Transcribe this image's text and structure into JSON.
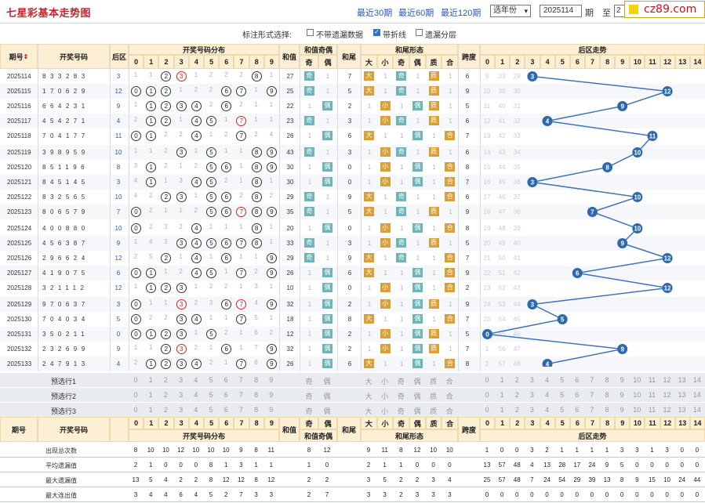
{
  "page": {
    "title": "七星彩基本走势图",
    "range_links": [
      "最近30期",
      "最近60期",
      "最近120期"
    ],
    "year_select": "选年份",
    "issue_from": "2025114",
    "label_qi": "期",
    "label_zhi": "至",
    "issue_to": "2",
    "brand": "cz89.com"
  },
  "filter": {
    "label": "标注形式选择:",
    "options": [
      {
        "label": "不带遗漏数据",
        "checked": false
      },
      {
        "label": "带折线",
        "checked": true
      },
      {
        "label": "遗漏分层",
        "checked": false
      }
    ]
  },
  "header": {
    "issue": "期号",
    "draw": "开奖号码",
    "back": "后区",
    "dist": "开奖号码分布",
    "sum": "和值",
    "sum_parity": "和值奇偶",
    "odd": "奇",
    "even": "偶",
    "tail": "和尾",
    "sum_form": "和尾形态",
    "forms": [
      "大",
      "小",
      "奇",
      "偶",
      "质",
      "合"
    ],
    "span": "跨度",
    "back_trend": "后区走势",
    "digits": [
      "0",
      "1",
      "2",
      "3",
      "4",
      "5",
      "6",
      "7",
      "8",
      "9"
    ],
    "back_digits": [
      "0",
      "1",
      "2",
      "3",
      "4",
      "5",
      "6",
      "7",
      "8",
      "9",
      "10",
      "11",
      "12",
      "13",
      "14"
    ]
  },
  "rows": [
    {
      "issue": "2025114",
      "draw": "833283",
      "back": "3",
      "dist": [
        "1",
        "1",
        "②",
        "③",
        "1",
        "2",
        "2",
        "2",
        "⑧",
        "1"
      ],
      "sum": "27",
      "parity": "奇",
      "tail": "7",
      "size": "大",
      "pr": "质",
      "span": "6",
      "bmiss": [
        "9",
        "33",
        "29",
        "3",
        "",
        "",
        "",
        "",
        "",
        "",
        "",
        "",
        "",
        "",
        ""
      ]
    },
    {
      "issue": "2025115",
      "draw": "170629",
      "back": "12",
      "dist": [
        "⓪",
        "①",
        "②",
        "1",
        "2",
        "2",
        "⑥",
        "⑦",
        "1",
        "⑨"
      ],
      "sum": "25",
      "parity": "奇",
      "tail": "5",
      "size": "大",
      "pr": "质",
      "span": "9",
      "bmiss": [
        "10",
        "38",
        "30",
        "",
        "",
        "",
        "",
        "",
        "",
        "",
        "",
        "",
        "12",
        "",
        ""
      ]
    },
    {
      "issue": "2025116",
      "draw": "664231",
      "back": "9",
      "dist": [
        "1",
        "①",
        "②",
        "③",
        "④",
        "2",
        "⑥",
        "2",
        "1",
        "1"
      ],
      "sum": "22",
      "parity": "偶",
      "tail": "2",
      "size": "小",
      "pr": "质",
      "span": "5",
      "bmiss": [
        "11",
        "40",
        "31",
        "",
        "",
        "",
        "",
        "",
        "",
        "9",
        "",
        "",
        "",
        "",
        ""
      ]
    },
    {
      "issue": "2025117",
      "draw": "454271",
      "back": "4",
      "dist": [
        "2",
        "①",
        "②",
        "1",
        "④",
        "⑤",
        "1",
        "⑦",
        "1",
        "1"
      ],
      "sum": "23",
      "parity": "奇",
      "tail": "3",
      "size": "小",
      "pr": "质",
      "span": "6",
      "bmiss": [
        "12",
        "41",
        "32",
        "",
        "4",
        "",
        "",
        "",
        "",
        "",
        "",
        "",
        "",
        "",
        ""
      ]
    },
    {
      "issue": "2025118",
      "draw": "704177",
      "back": "11",
      "dist": [
        "⓪",
        "①",
        "2",
        "2",
        "④",
        "1",
        "2",
        "⑦",
        "2",
        "4"
      ],
      "sum": "26",
      "parity": "偶",
      "tail": "6",
      "size": "大",
      "pr": "合",
      "span": "7",
      "bmiss": [
        "13",
        "42",
        "33",
        "",
        "",
        "",
        "",
        "",
        "",
        "",
        "",
        "11",
        "",
        "",
        ""
      ]
    },
    {
      "issue": "2025119",
      "draw": "398959",
      "back": "10",
      "dist": [
        "1",
        "1",
        "2",
        "③",
        "1",
        "⑤",
        "1",
        "1",
        "⑧",
        "⑨"
      ],
      "sum": "43",
      "parity": "奇",
      "tail": "3",
      "size": "小",
      "pr": "质",
      "span": "6",
      "bmiss": [
        "14",
        "43",
        "34",
        "",
        "",
        "",
        "",
        "",
        "",
        "",
        "10",
        "",
        "",
        "",
        ""
      ]
    },
    {
      "issue": "2025120",
      "draw": "851196",
      "back": "8",
      "dist": [
        "3",
        "①",
        "2",
        "1",
        "2",
        "⑤",
        "⑥",
        "1",
        "⑧",
        "⑨"
      ],
      "sum": "30",
      "parity": "偶",
      "tail": "0",
      "size": "小",
      "pr": "合",
      "span": "8",
      "bmiss": [
        "15",
        "44",
        "35",
        "",
        "",
        "",
        "",
        "",
        "8",
        "",
        "",
        "",
        "",
        "",
        ""
      ]
    },
    {
      "issue": "2025121",
      "draw": "845145",
      "back": "3",
      "dist": [
        "4",
        "①",
        "1",
        "3",
        "④",
        "⑤",
        "2",
        "1",
        "⑧",
        "1"
      ],
      "sum": "30",
      "parity": "偶",
      "tail": "0",
      "size": "小",
      "pr": "合",
      "span": "7",
      "bmiss": [
        "16",
        "45",
        "36",
        "3",
        "",
        "",
        "",
        "",
        "",
        "",
        "",
        "",
        "",
        "",
        ""
      ]
    },
    {
      "issue": "2025122",
      "draw": "832565",
      "back": "10",
      "dist": [
        "4",
        "2",
        "②",
        "③",
        "1",
        "⑤",
        "⑥",
        "2",
        "⑧",
        "2"
      ],
      "sum": "29",
      "parity": "奇",
      "tail": "9",
      "size": "大",
      "pr": "合",
      "span": "6",
      "bmiss": [
        "17",
        "46",
        "37",
        "",
        "",
        "",
        "",
        "",
        "",
        "",
        "10",
        "",
        "",
        "",
        ""
      ]
    },
    {
      "issue": "2025123",
      "draw": "806579",
      "back": "7",
      "dist": [
        "⓪",
        "2",
        "1",
        "1",
        "2",
        "⑤",
        "⑥",
        "⑦",
        "⑧",
        "⑨"
      ],
      "sum": "35",
      "parity": "奇",
      "tail": "5",
      "size": "大",
      "pr": "质",
      "span": "9",
      "bmiss": [
        "18",
        "47",
        "38",
        "",
        "",
        "",
        "",
        "7",
        "",
        "",
        "",
        "",
        "",
        "",
        ""
      ]
    },
    {
      "issue": "2025124",
      "draw": "400880",
      "back": "10",
      "dist": [
        "⓪",
        "2",
        "3",
        "2",
        "④",
        "1",
        "1",
        "1",
        "⑧",
        "1"
      ],
      "sum": "20",
      "parity": "偶",
      "tail": "0",
      "size": "小",
      "pr": "合",
      "span": "8",
      "bmiss": [
        "19",
        "48",
        "39",
        "",
        "",
        "",
        "",
        "",
        "",
        "",
        "10",
        "",
        "",
        "",
        ""
      ]
    },
    {
      "issue": "2025125",
      "draw": "456387",
      "back": "9",
      "dist": [
        "1",
        "4",
        "3",
        "③",
        "④",
        "⑤",
        "⑥",
        "⑦",
        "⑧",
        "1"
      ],
      "sum": "33",
      "parity": "奇",
      "tail": "3",
      "size": "小",
      "pr": "质",
      "span": "5",
      "bmiss": [
        "20",
        "49",
        "40",
        "",
        "",
        "",
        "",
        "",
        "",
        "9",
        "",
        "",
        "",
        "",
        ""
      ]
    },
    {
      "issue": "2025126",
      "draw": "296624",
      "back": "12",
      "dist": [
        "2",
        "5",
        "②",
        "1",
        "④",
        "1",
        "⑥",
        "1",
        "1",
        "⑨"
      ],
      "sum": "29",
      "parity": "奇",
      "tail": "9",
      "size": "大",
      "pr": "合",
      "span": "7",
      "bmiss": [
        "21",
        "50",
        "41",
        "",
        "",
        "",
        "",
        "",
        "",
        "",
        "",
        "",
        "12",
        "",
        ""
      ]
    },
    {
      "issue": "2025127",
      "draw": "419075",
      "back": "6",
      "dist": [
        "⓪",
        "①",
        "1",
        "2",
        "④",
        "⑤",
        "1",
        "⑦",
        "2",
        "⑨"
      ],
      "sum": "26",
      "parity": "偶",
      "tail": "6",
      "size": "大",
      "pr": "合",
      "span": "9",
      "bmiss": [
        "22",
        "51",
        "42",
        "",
        "",
        "",
        "6",
        "",
        "",
        "",
        "",
        "",
        "",
        "",
        ""
      ]
    },
    {
      "issue": "2025128",
      "draw": "321112",
      "back": "12",
      "dist": [
        "1",
        "①",
        "②",
        "③",
        "1",
        "2",
        "2",
        "1",
        "3",
        "1"
      ],
      "sum": "10",
      "parity": "偶",
      "tail": "0",
      "size": "小",
      "pr": "合",
      "span": "2",
      "bmiss": [
        "23",
        "52",
        "43",
        "",
        "",
        "",
        "",
        "",
        "",
        "",
        "",
        "",
        "12",
        "",
        ""
      ]
    },
    {
      "issue": "2025129",
      "draw": "970637",
      "back": "3",
      "dist": [
        "⓪",
        "1",
        "1",
        "③",
        "2",
        "3",
        "⑥",
        "⑦",
        "4",
        "⑨"
      ],
      "sum": "32",
      "parity": "偶",
      "tail": "2",
      "size": "小",
      "pr": "质",
      "span": "9",
      "bmiss": [
        "24",
        "53",
        "44",
        "3",
        "",
        "",
        "",
        "",
        "",
        "",
        "",
        "",
        "",
        "",
        ""
      ]
    },
    {
      "issue": "2025130",
      "draw": "704034",
      "back": "5",
      "dist": [
        "⓪",
        "2",
        "2",
        "③",
        "④",
        "1",
        "1",
        "⑦",
        "5",
        "1"
      ],
      "sum": "18",
      "parity": "偶",
      "tail": "8",
      "size": "大",
      "pr": "合",
      "span": "7",
      "bmiss": [
        "25",
        "54",
        "45",
        "",
        "",
        "5",
        "",
        "",
        "",
        "",
        "",
        "",
        "",
        "",
        ""
      ]
    },
    {
      "issue": "2025131",
      "draw": "350211",
      "back": "0",
      "dist": [
        "⓪",
        "①",
        "②",
        "③",
        "1",
        "⑤",
        "2",
        "1",
        "6",
        "2"
      ],
      "sum": "12",
      "parity": "偶",
      "tail": "2",
      "size": "小",
      "pr": "质",
      "span": "5",
      "bmiss": [
        "0",
        "55",
        "46",
        "",
        "",
        "",
        "",
        "",
        "",
        "",
        "",
        "",
        "",
        "",
        ""
      ]
    },
    {
      "issue": "2025132",
      "draw": "232699",
      "back": "9",
      "dist": [
        "1",
        "1",
        "②",
        "③",
        "2",
        "1",
        "⑥",
        "1",
        "7",
        "⑨"
      ],
      "sum": "32",
      "parity": "偶",
      "tail": "2",
      "size": "小",
      "pr": "质",
      "span": "7",
      "bmiss": [
        "1",
        "56",
        "47",
        "",
        "",
        "",
        "",
        "",
        "",
        "9",
        "",
        "",
        "",
        "",
        ""
      ]
    },
    {
      "issue": "2025133",
      "draw": "247913",
      "back": "4",
      "dist": [
        "2",
        "①",
        "②",
        "③",
        "④",
        "2",
        "1",
        "⑦",
        "8",
        "⑨"
      ],
      "sum": "26",
      "parity": "偶",
      "tail": "6",
      "size": "大",
      "pr": "合",
      "span": "8",
      "bmiss": [
        "2",
        "57",
        "48",
        "",
        "4",
        "",
        "",
        "",
        "",
        "",
        "",
        "",
        "",
        "",
        ""
      ]
    }
  ],
  "presel": {
    "rows": [
      "预选行1",
      "预选行2",
      "预选行3"
    ]
  },
  "footer": {
    "labels": [
      "出现总次数",
      "平均遗漏值",
      "最大遗漏值",
      "最大连出值"
    ],
    "draw_label": "开奖号码",
    "dist_label": "开奖号码分布",
    "sum_parity_label": "和值奇偶",
    "sum_form_label": "和尾形态",
    "trend_label": "后区走势",
    "dist_stats": [
      [
        "8",
        "10",
        "10",
        "12",
        "10",
        "10",
        "10",
        "9",
        "8",
        "11"
      ],
      [
        "2",
        "1",
        "0",
        "0",
        "0",
        "8",
        "1",
        "3",
        "1",
        "1"
      ],
      [
        "13",
        "5",
        "4",
        "2",
        "2",
        "8",
        "12",
        "12",
        "8",
        "12"
      ],
      [
        "3",
        "4",
        "4",
        "6",
        "4",
        "5",
        "2",
        "7",
        "3",
        "3"
      ]
    ],
    "parity_stats": [
      [
        "8",
        "12"
      ],
      [
        "1",
        "0"
      ],
      [
        "2",
        "2"
      ],
      [
        "2",
        "7"
      ]
    ],
    "form_stats": [
      [
        "9",
        "11",
        "8",
        "12",
        "10",
        "10"
      ],
      [
        "2",
        "1",
        "1",
        "0",
        "0",
        "0"
      ],
      [
        "3",
        "5",
        "2",
        "2",
        "3",
        "4"
      ],
      [
        "3",
        "3",
        "2",
        "3",
        "3",
        "3"
      ]
    ],
    "back_stats": [
      [
        "1",
        "0",
        "0",
        "3",
        "2",
        "1",
        "1",
        "1",
        "1",
        "3",
        "3",
        "1",
        "3",
        "0",
        "0"
      ],
      [
        "13",
        "57",
        "48",
        "4",
        "13",
        "28",
        "17",
        "24",
        "9",
        "5",
        "0",
        "0",
        "0",
        "0",
        "0"
      ],
      [
        "25",
        "57",
        "48",
        "7",
        "24",
        "54",
        "29",
        "39",
        "13",
        "8",
        "9",
        "15",
        "10",
        "24",
        "44"
      ],
      [
        "0",
        "0",
        "0",
        "0",
        "0",
        "0",
        "0",
        "0",
        "0",
        "0",
        "0",
        "0",
        "0",
        "0",
        "0"
      ]
    ]
  },
  "chart_data": {
    "type": "line",
    "title": "后区走势",
    "x": [
      "2025114",
      "2025115",
      "2025116",
      "2025117",
      "2025118",
      "2025119",
      "2025120",
      "2025121",
      "2025122",
      "2025123",
      "2025124",
      "2025125",
      "2025126",
      "2025127",
      "2025128",
      "2025129",
      "2025130",
      "2025131",
      "2025132",
      "2025133"
    ],
    "values": [
      3,
      12,
      9,
      4,
      11,
      10,
      8,
      3,
      10,
      7,
      10,
      9,
      12,
      6,
      12,
      3,
      5,
      0,
      9,
      4
    ],
    "xlabel": "",
    "ylabel": "",
    "ylim": [
      0,
      14
    ],
    "colors": {
      "line": "#3f74b8",
      "ball": "#2d69ad"
    }
  }
}
